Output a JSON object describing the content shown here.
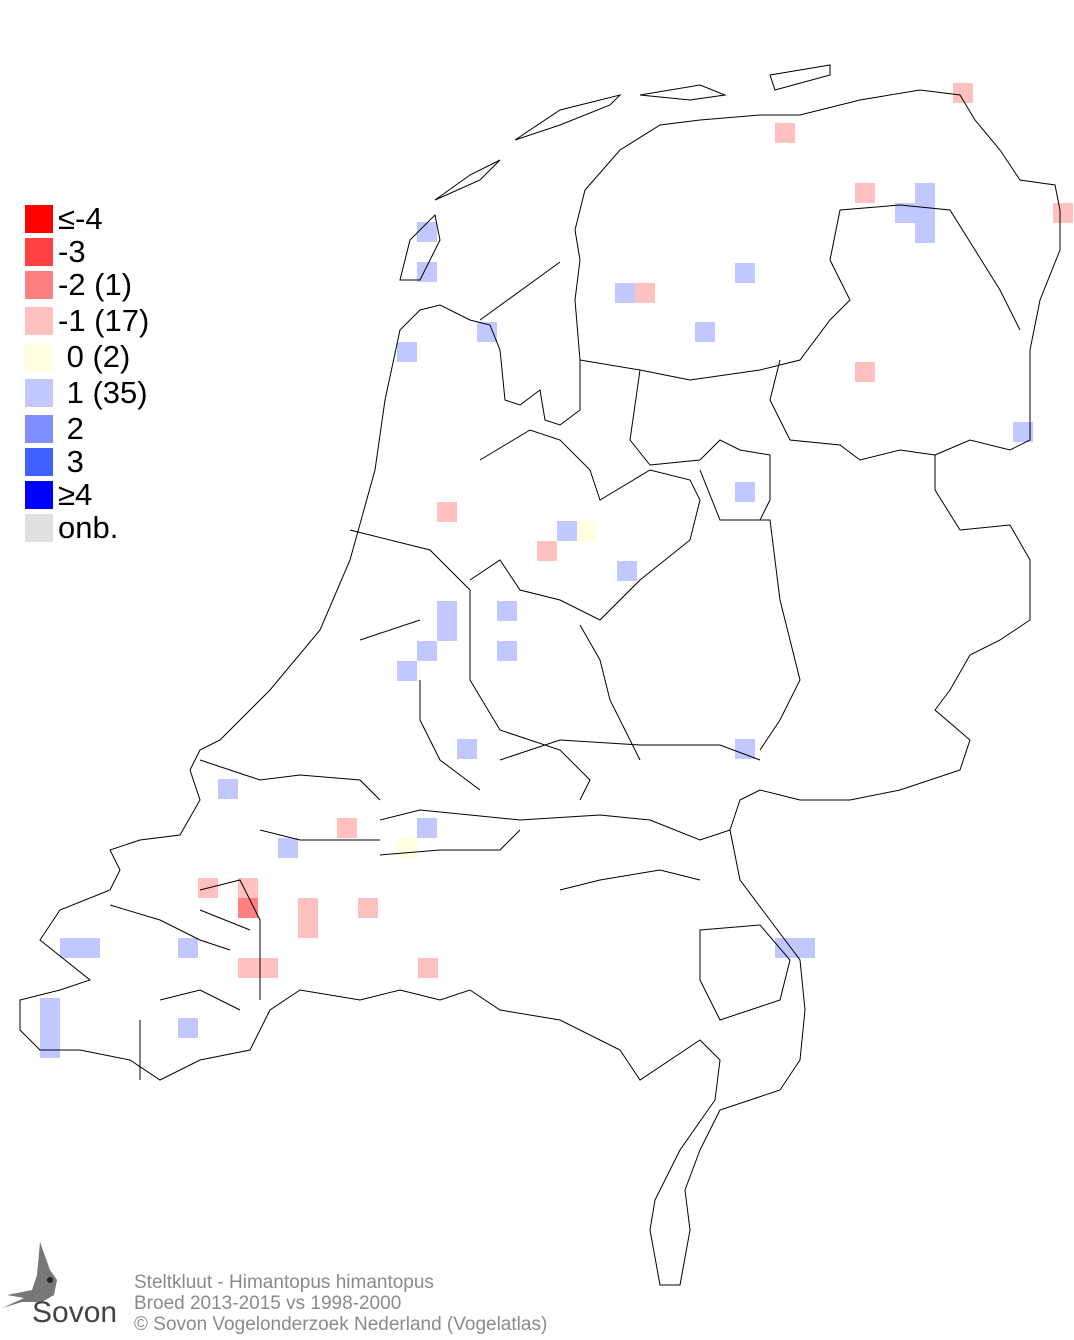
{
  "legend": {
    "items": [
      {
        "label": "≤-4",
        "color": "#ff0000"
      },
      {
        "label": "-3",
        "color": "#ff4040"
      },
      {
        "label": "-2 (1)",
        "color": "#ff8080"
      },
      {
        "label": "-1 (17)",
        "color": "#ffc0c0"
      },
      {
        "label": " 0 (2)",
        "color": "#ffffe0"
      },
      {
        "label": " 1 (35)",
        "color": "#c0c8ff"
      },
      {
        "label": " 2",
        "color": "#8090ff"
      },
      {
        "label": " 3",
        "color": "#4060ff"
      },
      {
        "label": "≥4",
        "color": "#0000ff"
      },
      {
        "label": "onb.",
        "color": "#e0e0e0"
      }
    ]
  },
  "caption": {
    "species": "Steltkluut - Himantopus himantopus",
    "period": "Broed 2013-2015 vs 1998-2000",
    "copyright": "© Sovon Vogelonderzoek Nederland (Vogelatlas)"
  },
  "logo": {
    "text": "Sovon"
  }
}
